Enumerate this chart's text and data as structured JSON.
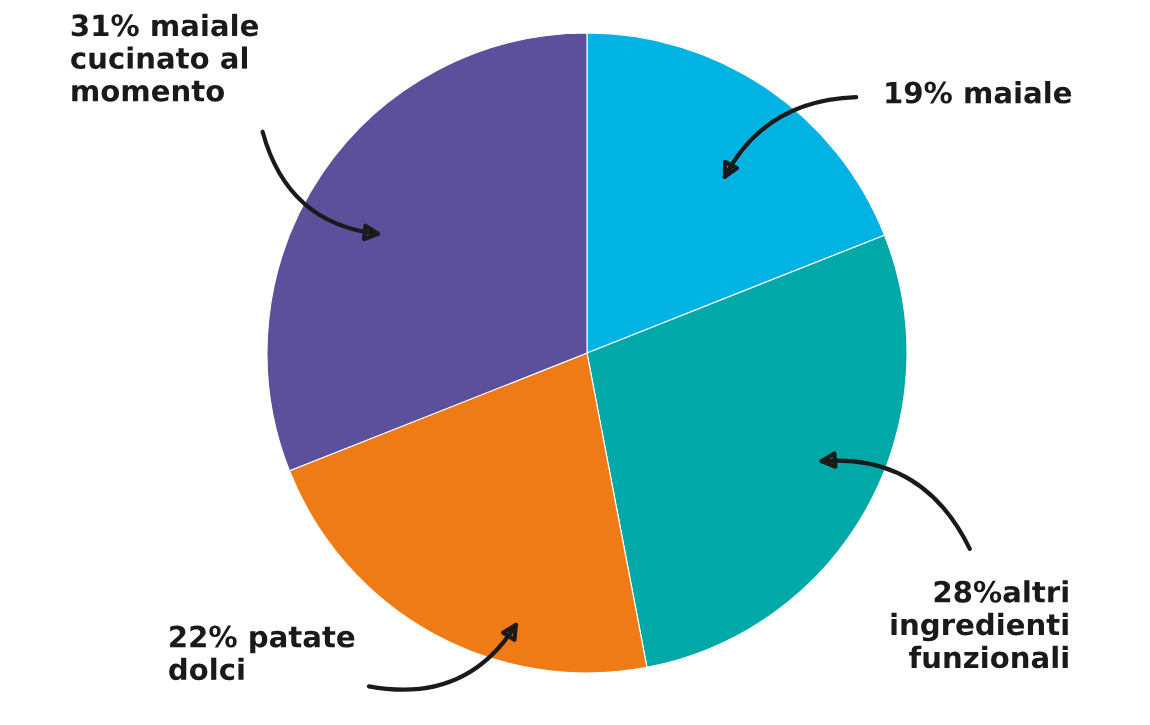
{
  "chart_data": {
    "type": "pie",
    "categories": [
      "19% maiale",
      "28%altri\ningredienti\nfunzionali",
      "22% patate\ndolci",
      "31% maiale\ncucinato al\nmomento"
    ],
    "values": [
      19,
      28,
      22,
      31
    ],
    "colors": [
      "#00b3e3",
      "#00a9a8",
      "#ef7b17",
      "#5c4f9c"
    ]
  }
}
